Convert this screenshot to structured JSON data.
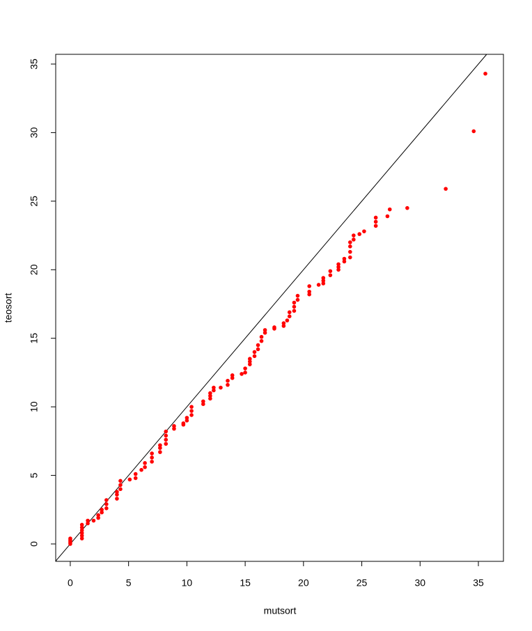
{
  "chart_data": {
    "type": "scatter",
    "x_label": "mutsort",
    "y_label": "teosort",
    "xlim": [
      -1.25,
      37.15
    ],
    "ylim": [
      -1.27,
      35.71
    ],
    "xticks": [
      0,
      5,
      10,
      15,
      20,
      25,
      30,
      35
    ],
    "yticks": [
      0,
      5,
      10,
      15,
      20,
      25,
      30,
      35
    ],
    "color": "#ff0000",
    "reference_line": {
      "intercept": 0,
      "slope": 1,
      "color": "#000000"
    },
    "x": [
      0,
      0,
      0,
      0,
      0,
      1,
      1,
      1,
      1,
      1,
      1,
      1.5,
      1.5,
      2,
      2.4,
      2.4,
      2.7,
      2.7,
      3.1,
      3.1,
      3.1,
      4,
      4,
      4,
      4.3,
      4.3,
      4.3,
      5.1,
      5.6,
      5.6,
      6.1,
      6.4,
      6.4,
      7,
      7,
      7,
      7.7,
      7.7,
      7.7,
      8.2,
      8.2,
      8.2,
      8.2,
      8.9,
      8.9,
      9.7,
      9.7,
      10,
      10,
      10.4,
      10.4,
      10.4,
      11.4,
      11.4,
      12,
      12,
      12,
      12.3,
      12.3,
      12.9,
      13.5,
      13.5,
      13.9,
      13.9,
      14.7,
      15,
      15,
      15.4,
      15.4,
      15.4,
      15.8,
      15.8,
      16.1,
      16.1,
      16.4,
      16.4,
      16.7,
      16.7,
      17.5,
      17.5,
      18.3,
      18.3,
      18.6,
      18.8,
      18.8,
      19.2,
      19.2,
      19.2,
      19.5,
      19.5,
      20.5,
      20.5,
      20.5,
      21.3,
      21.7,
      21.7,
      21.7,
      22.3,
      22.3,
      23,
      23,
      23,
      23.5,
      23.5,
      24,
      24,
      24,
      24,
      24.3,
      24.3,
      24.8,
      25.2,
      26.2,
      26.2,
      26.2,
      27.2,
      27.4,
      28.9,
      32.2,
      34.6,
      35.6
    ],
    "y": [
      0,
      0.1,
      0.2,
      0.3,
      0.4,
      0.4,
      0.6,
      0.8,
      1.0,
      1.2,
      1.4,
      1.5,
      1.7,
      1.7,
      1.9,
      2.1,
      2.3,
      2.5,
      2.6,
      2.9,
      3.2,
      3.3,
      3.6,
      3.8,
      4.0,
      4.3,
      4.6,
      4.7,
      4.8,
      5.1,
      5.4,
      5.6,
      5.9,
      6.0,
      6.3,
      6.6,
      6.7,
      7.0,
      7.2,
      7.3,
      7.6,
      7.9,
      8.2,
      8.4,
      8.6,
      8.7,
      8.8,
      9.0,
      9.2,
      9.4,
      9.7,
      10.0,
      10.2,
      10.4,
      10.6,
      10.8,
      11.0,
      11.2,
      11.4,
      11.4,
      11.6,
      11.9,
      12.1,
      12.3,
      12.4,
      12.5,
      12.8,
      13.1,
      13.3,
      13.5,
      13.7,
      14.0,
      14.2,
      14.5,
      14.8,
      15.1,
      15.4,
      15.6,
      15.7,
      15.8,
      15.9,
      16.1,
      16.3,
      16.6,
      16.9,
      17.0,
      17.3,
      17.6,
      17.8,
      18.1,
      18.2,
      18.4,
      18.8,
      18.9,
      19.0,
      19.2,
      19.4,
      19.6,
      19.9,
      20.0,
      20.2,
      20.4,
      20.6,
      20.8,
      20.9,
      21.3,
      21.7,
      22.0,
      22.2,
      22.5,
      22.6,
      22.8,
      23.2,
      23.5,
      23.8,
      23.9,
      24.4,
      24.5,
      25.9,
      30.1,
      34.3
    ]
  }
}
